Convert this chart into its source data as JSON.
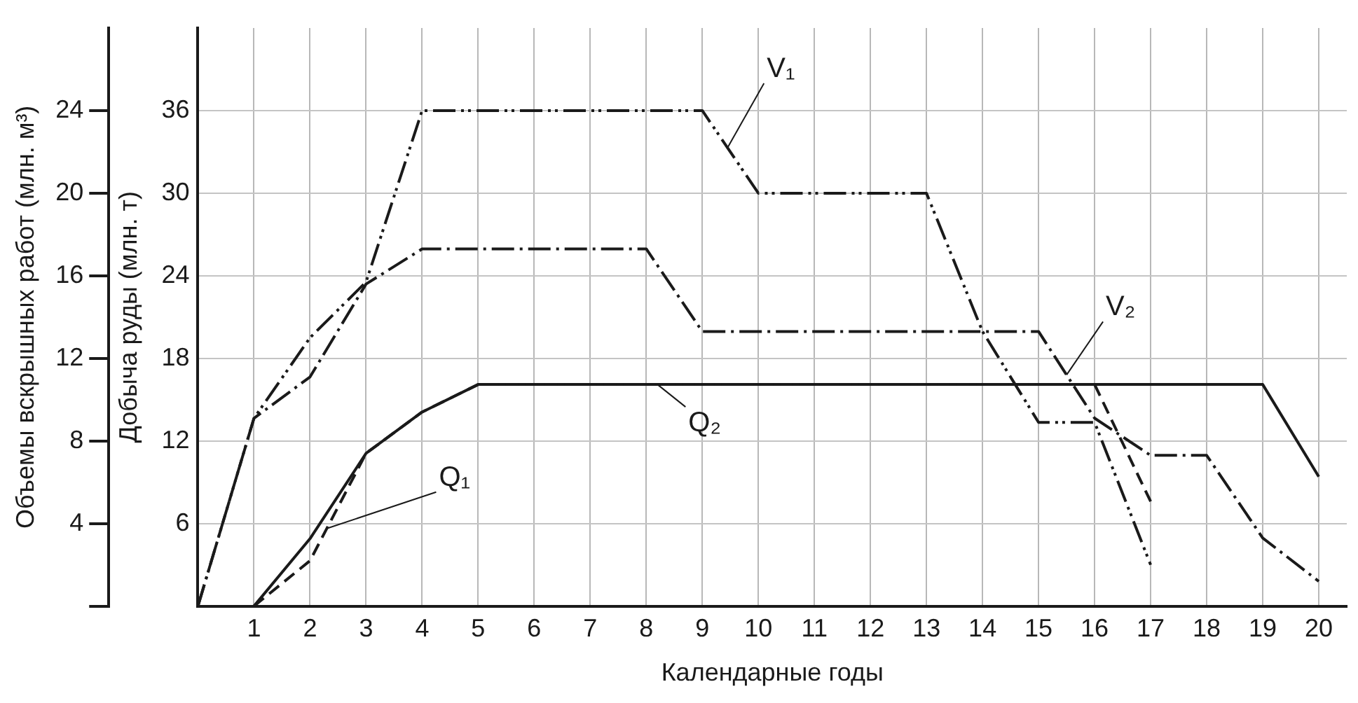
{
  "chart_data": {
    "type": "line",
    "xlabel": "Календарные годы",
    "ylabel": "Добыча руды (млн. т)",
    "y2label": "Объемы вскрышных работ (млн. м³)",
    "x": [
      0,
      1,
      2,
      3,
      4,
      5,
      6,
      7,
      8,
      9,
      10,
      11,
      12,
      13,
      14,
      15,
      16,
      17,
      18,
      19,
      20
    ],
    "xlim": [
      0,
      20.5
    ],
    "xticks": [
      1,
      2,
      3,
      4,
      5,
      6,
      7,
      8,
      9,
      10,
      11,
      12,
      13,
      14,
      15,
      16,
      17,
      18,
      19,
      20
    ],
    "ylim": [
      0,
      42
    ],
    "yticks": [
      6,
      12,
      18,
      24,
      30,
      36
    ],
    "y2lim": [
      0,
      28
    ],
    "y2ticks": [
      {
        "value": 0,
        "label": null
      },
      4,
      8,
      12,
      16,
      20,
      24
    ],
    "grid": true,
    "marker": "none",
    "series": [
      {
        "name": "V₁",
        "color": "#1a1a1a",
        "axis": "y2",
        "line_style": "dashdotdot",
        "values": [
          0,
          9.1,
          13,
          15.7,
          24,
          24,
          24,
          24,
          24,
          24,
          20,
          20,
          20,
          20,
          13.3,
          8.9,
          8.9,
          2,
          null,
          null,
          null
        ]
      },
      {
        "name": "V₂",
        "color": "#1a1a1a",
        "axis": "y2",
        "line_style": "dashdot",
        "values": [
          0,
          9.1,
          11.1,
          15.6,
          17.3,
          17.3,
          17.3,
          17.3,
          17.3,
          13.3,
          13.3,
          13.3,
          13.3,
          13.3,
          13.3,
          13.3,
          9.1,
          7.3,
          7.3,
          3.3,
          1.2
        ]
      },
      {
        "name": "Q₁",
        "color": "#1a1a1a",
        "axis": "y",
        "line_style": "dashed",
        "values": [
          null,
          0,
          3.3,
          11.1,
          14.1,
          16.1,
          16.1,
          16.1,
          16.1,
          16.1,
          16.1,
          16.1,
          16.1,
          16.1,
          16.1,
          16.1,
          16.1,
          7.6,
          null,
          null,
          null
        ]
      },
      {
        "name": "Q₂",
        "color": "#1a1a1a",
        "axis": "y",
        "line_style": "solid",
        "values": [
          null,
          0,
          4.9,
          11.1,
          14.1,
          16.1,
          16.1,
          16.1,
          16.1,
          16.1,
          16.1,
          16.1,
          16.1,
          16.1,
          16.1,
          16.1,
          16.1,
          16.1,
          16.1,
          16.1,
          9.4
        ]
      }
    ]
  }
}
